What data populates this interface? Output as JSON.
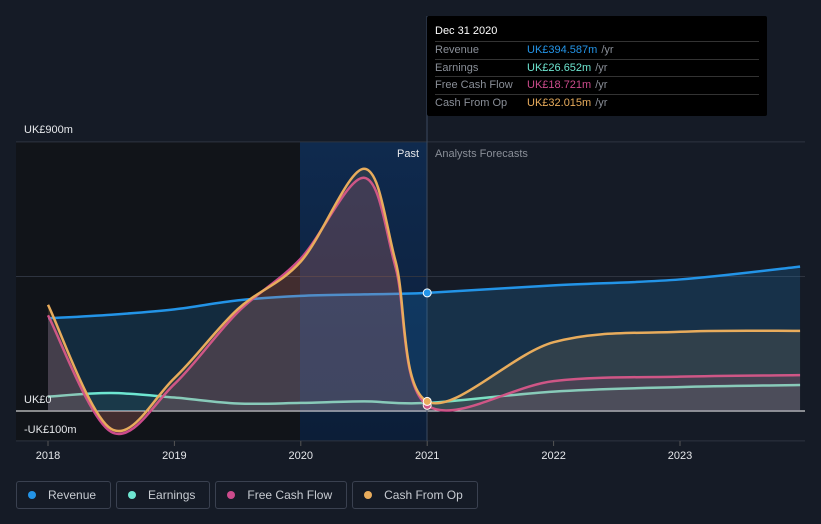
{
  "tooltip": {
    "date": "Dec 31 2020",
    "rows": [
      {
        "label": "Revenue",
        "value": "UK£394.587m",
        "unit": "/yr",
        "color": "#2394e7"
      },
      {
        "label": "Earnings",
        "value": "UK£26.652m",
        "unit": "/yr",
        "color": "#6ee6d1"
      },
      {
        "label": "Free Cash Flow",
        "value": "UK£18.721m",
        "unit": "/yr",
        "color": "#cc4b8c"
      },
      {
        "label": "Cash From Op",
        "value": "UK£32.015m",
        "unit": "/yr",
        "color": "#e8ac5c"
      }
    ]
  },
  "labels": {
    "past": "Past",
    "forecast": "Analysts Forecasts"
  },
  "legend": [
    {
      "label": "Revenue",
      "color": "#2394e7"
    },
    {
      "label": "Earnings",
      "color": "#6ee6d1"
    },
    {
      "label": "Free Cash Flow",
      "color": "#cc4b8c"
    },
    {
      "label": "Cash From Op",
      "color": "#e8ac5c"
    }
  ],
  "chart_data": {
    "type": "line",
    "ylim": [
      -100,
      900
    ],
    "y_ticks": [
      {
        "v": 900,
        "label": "UK£900m"
      },
      {
        "v": 0,
        "label": "UK£0"
      },
      {
        "v": -100,
        "label": "-UK£100m"
      }
    ],
    "x_ticks": [
      2018,
      2019,
      2020,
      2021,
      2022,
      2023
    ],
    "divider_x": 2021,
    "series": [
      {
        "name": "Revenue",
        "color": "#2394e7",
        "x": [
          2018,
          2018.5,
          2019,
          2019.5,
          2020,
          2020.5,
          2021,
          2022,
          2023,
          2023.95
        ],
        "y": [
          310,
          322,
          340,
          370,
          385,
          390,
          395,
          420,
          440,
          483
        ]
      },
      {
        "name": "Earnings",
        "color": "#6ee6d1",
        "x": [
          2018,
          2018.5,
          2019,
          2019.5,
          2020,
          2020.5,
          2021,
          2022,
          2023,
          2023.95
        ],
        "y": [
          48,
          60,
          45,
          25,
          27,
          32,
          27,
          65,
          80,
          87
        ]
      },
      {
        "name": "Free Cash Flow",
        "color": "#cc4b8c",
        "x": [
          2018,
          2018.5,
          2019,
          2019.5,
          2020,
          2020.5,
          2020.75,
          2021,
          2022,
          2023,
          2023.95
        ],
        "y": [
          320,
          -70,
          90,
          330,
          510,
          780,
          480,
          19,
          100,
          115,
          120
        ]
      },
      {
        "name": "Cash From Op",
        "color": "#e8ac5c",
        "x": [
          2018,
          2018.5,
          2019,
          2019.5,
          2020,
          2020.5,
          2020.75,
          2021,
          2022,
          2023,
          2023.95
        ],
        "y": [
          355,
          -60,
          110,
          340,
          500,
          810,
          500,
          32,
          230,
          265,
          268
        ]
      }
    ]
  }
}
